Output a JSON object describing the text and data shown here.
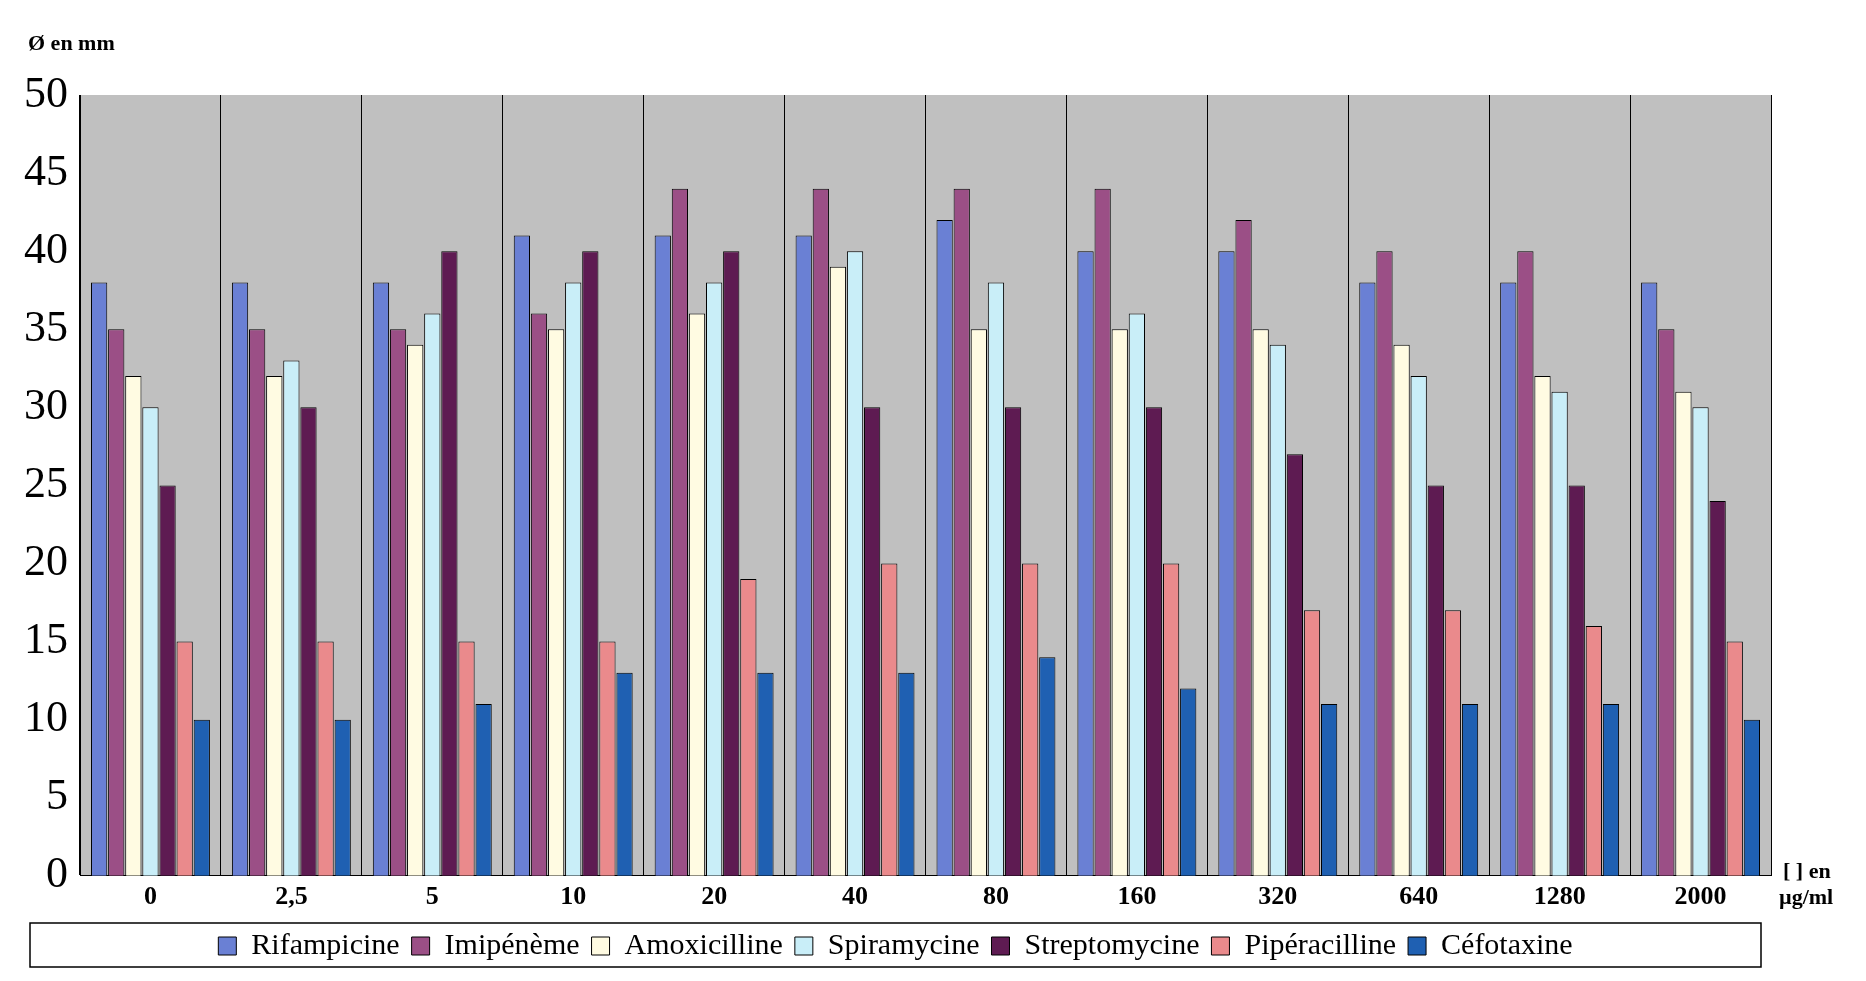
{
  "chart_data": {
    "type": "bar",
    "ylabel": "Ø en mm",
    "xlabel": "[ ] en µg/ml",
    "categories": [
      "0",
      "2,5",
      "5",
      "10",
      "20",
      "40",
      "80",
      "160",
      "320",
      "640",
      "1280",
      "2000"
    ],
    "series": [
      {
        "name": "Rifampicine",
        "color": "#6a80d4",
        "values": [
          38,
          38,
          38,
          41,
          41,
          41,
          42,
          40,
          40,
          38,
          38,
          38
        ]
      },
      {
        "name": "Imipénème",
        "color": "#9b4f86",
        "values": [
          35,
          35,
          35,
          36,
          44,
          44,
          44,
          44,
          42,
          40,
          40,
          35
        ]
      },
      {
        "name": "Amoxicilline",
        "color": "#fffbe2",
        "values": [
          32,
          32,
          34,
          35,
          36,
          39,
          35,
          35,
          35,
          34,
          32,
          31
        ]
      },
      {
        "name": "Spiramycine",
        "color": "#c9eef8",
        "values": [
          30,
          33,
          36,
          38,
          38,
          40,
          38,
          36,
          34,
          32,
          31,
          30
        ]
      },
      {
        "name": "Streptomycine",
        "color": "#5e1b52",
        "values": [
          25,
          30,
          40,
          40,
          40,
          30,
          30,
          30,
          27,
          25,
          25,
          24
        ]
      },
      {
        "name": "Pipéracilline",
        "color": "#ea8a8c",
        "values": [
          15,
          15,
          15,
          15,
          19,
          20,
          20,
          20,
          17,
          17,
          16,
          15
        ]
      },
      {
        "name": "Céfotaxine",
        "color": "#1f60b2",
        "values": [
          10,
          10,
          11,
          13,
          13,
          13,
          14,
          12,
          11,
          11,
          11,
          10
        ]
      }
    ],
    "ylim": [
      0,
      50
    ],
    "yticks": [
      0,
      5,
      10,
      15,
      20,
      25,
      30,
      35,
      40,
      45,
      50
    ],
    "grid": "x",
    "legend": "bottom"
  }
}
